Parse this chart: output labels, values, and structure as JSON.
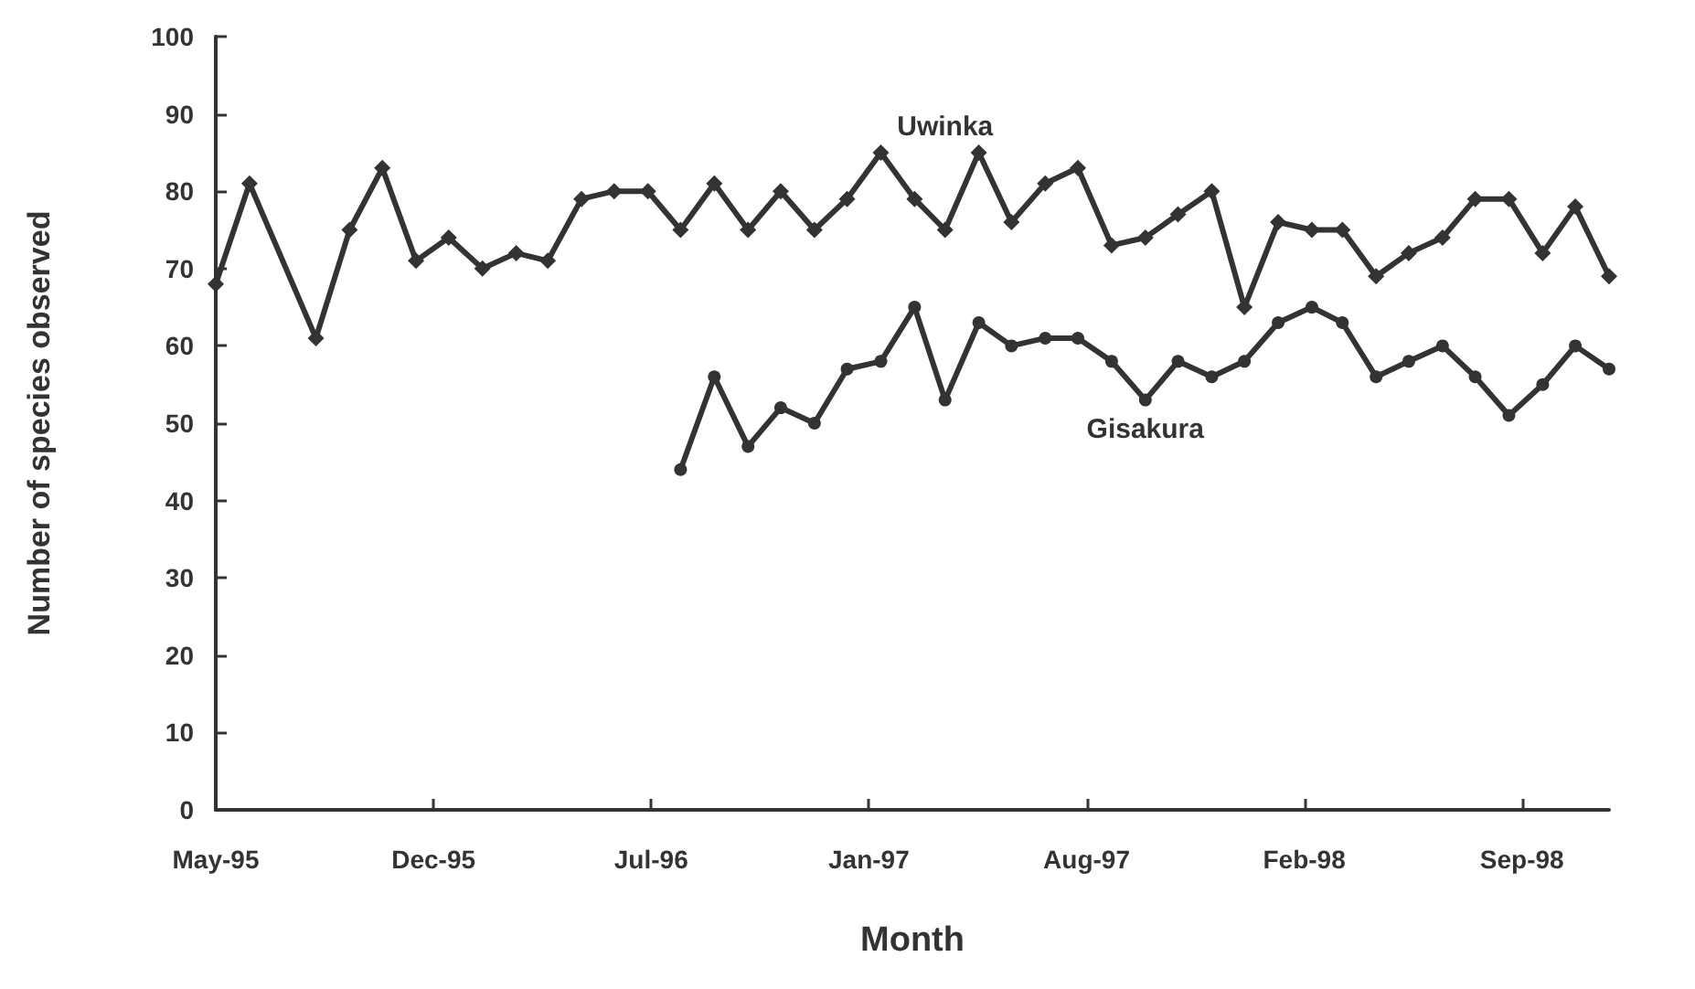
{
  "chart_data": {
    "type": "line",
    "xlabel": "Month",
    "ylabel": "Number of species observed",
    "xlim": [
      "1995-05-28",
      "1998-11-28"
    ],
    "xticks": [
      {
        "value": "1995-05-28",
        "label": "May-95"
      },
      {
        "value": "1995-12-14",
        "label": "Dec-95"
      },
      {
        "value": "1996-07-01",
        "label": "Jul-96"
      },
      {
        "value": "1997-01-17",
        "label": "Jan-97"
      },
      {
        "value": "1997-08-05",
        "label": "Aug-97"
      },
      {
        "value": "1998-02-21",
        "label": "Feb-98"
      },
      {
        "value": "1998-09-09",
        "label": "Sep-98"
      }
    ],
    "ylim": [
      0,
      100
    ],
    "yticks": [
      0,
      10,
      20,
      30,
      40,
      50,
      60,
      70,
      80,
      90,
      100
    ],
    "grid": false,
    "legend": false,
    "line_style": "solid",
    "series": [
      {
        "name": "Uwinka",
        "color": "#333333",
        "marker": "diamond",
        "x": [
          "1995-05-28",
          "1995-06-28",
          "1995-08-28",
          "1995-09-28",
          "1995-10-28",
          "1995-11-28",
          "1995-12-28",
          "1996-01-28",
          "1996-02-28",
          "1996-03-28",
          "1996-04-28",
          "1996-05-28",
          "1996-06-28",
          "1996-07-28",
          "1996-08-28",
          "1996-09-28",
          "1996-10-28",
          "1996-11-28",
          "1996-12-28",
          "1997-01-28",
          "1997-02-28",
          "1997-03-28",
          "1997-04-28",
          "1997-05-28",
          "1997-06-28",
          "1997-07-28",
          "1997-08-28",
          "1997-09-28",
          "1997-10-28",
          "1997-11-28",
          "1997-12-28",
          "1998-01-28",
          "1998-02-28",
          "1998-03-28",
          "1998-04-28",
          "1998-05-28",
          "1998-06-28",
          "1998-07-28",
          "1998-08-28",
          "1998-09-28",
          "1998-10-28",
          "1998-11-28"
        ],
        "values": [
          68,
          81,
          61,
          75,
          83,
          71,
          74,
          70,
          72,
          71,
          79,
          80,
          80,
          75,
          81,
          75,
          80,
          75,
          79,
          85,
          79,
          75,
          85,
          76,
          81,
          83,
          73,
          74,
          77,
          80,
          65,
          76,
          75,
          75,
          69,
          72,
          74,
          79,
          79,
          72,
          78,
          69
        ]
      },
      {
        "name": "Gisakura",
        "color": "#333333",
        "marker": "circle",
        "x": [
          "1996-07-28",
          "1996-08-28",
          "1996-09-28",
          "1996-10-28",
          "1996-11-28",
          "1996-12-28",
          "1997-01-28",
          "1997-02-28",
          "1997-03-28",
          "1997-04-28",
          "1997-05-28",
          "1997-06-28",
          "1997-07-28",
          "1997-08-28",
          "1997-09-28",
          "1997-10-28",
          "1997-11-28",
          "1997-12-28",
          "1998-01-28",
          "1998-02-28",
          "1998-03-28",
          "1998-04-28",
          "1998-05-28",
          "1998-06-28",
          "1998-07-28",
          "1998-08-28",
          "1998-09-28",
          "1998-10-28",
          "1998-11-28"
        ],
        "values": [
          44,
          56,
          47,
          52,
          50,
          57,
          58,
          65,
          53,
          63,
          60,
          61,
          61,
          58,
          53,
          58,
          56,
          58,
          63,
          65,
          63,
          56,
          58,
          60,
          56,
          51,
          55,
          60,
          57
        ]
      }
    ]
  }
}
